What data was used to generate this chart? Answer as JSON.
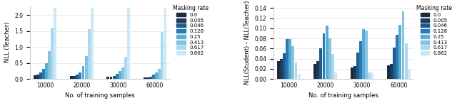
{
  "masking_rates": [
    0.0,
    0.005,
    0.046,
    0.128,
    0.25,
    0.413,
    0.617,
    0.862
  ],
  "training_samples": [
    10000,
    20000,
    30000,
    60000
  ],
  "colors": [
    "#1c2b3a",
    "#1e3a5a",
    "#1f5c8a",
    "#2a7ab5",
    "#5aaed4",
    "#85c3e0",
    "#aad8f0",
    "#cce8f8"
  ],
  "plot1_ylabel": "NLL (Teacher)",
  "plot2_ylabel": "NLL(Student) - NLL(Teacher)",
  "xlabel": "No. of training samples",
  "legend_title": "Masking rate",
  "plot1_ylim": [
    0,
    2.3
  ],
  "plot2_ylim": [
    0,
    0.145
  ],
  "plot1_data": [
    [
      0.12,
      0.13,
      0.2,
      0.32,
      0.48,
      0.87,
      1.6,
      2.22
    ],
    [
      0.08,
      0.09,
      0.14,
      0.21,
      0.4,
      0.72,
      1.55,
      2.22
    ],
    [
      0.06,
      0.07,
      0.1,
      0.16,
      0.25,
      0.35,
      0.7,
      2.22
    ],
    [
      0.04,
      0.05,
      0.07,
      0.13,
      0.2,
      0.32,
      1.48,
      2.22
    ]
  ],
  "plot2_data": [
    [
      0.035,
      0.04,
      0.05,
      0.078,
      0.078,
      0.065,
      0.033,
      0.01
    ],
    [
      0.03,
      0.035,
      0.06,
      0.09,
      0.105,
      0.08,
      0.049,
      0.013
    ],
    [
      0.022,
      0.026,
      0.052,
      0.074,
      0.098,
      0.095,
      0.013,
      0.013
    ],
    [
      0.027,
      0.03,
      0.062,
      0.087,
      0.107,
      0.134,
      0.07,
      0.018
    ]
  ],
  "plot1_yticks": [
    0.0,
    0.5,
    1.0,
    1.5,
    2.0
  ],
  "plot2_yticks": [
    0.0,
    0.02,
    0.04,
    0.06,
    0.08,
    0.1,
    0.12,
    0.14
  ],
  "legend_rates_str": [
    "0.0",
    "0.005",
    "0.046",
    "0.128",
    "0.25",
    "0.413",
    "0.617",
    "0.862"
  ]
}
